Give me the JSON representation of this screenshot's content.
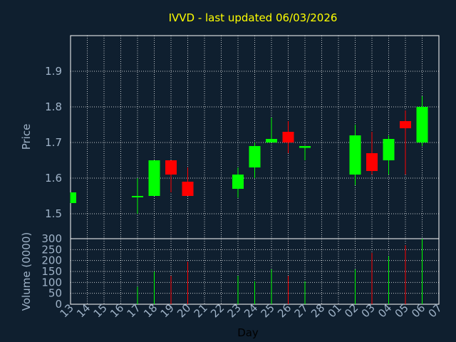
{
  "chart_data": {
    "type": "candlestick",
    "title": "IVVD - last updated 06/03/2026",
    "xlabel": "Day",
    "ylabel_price": "Price",
    "ylabel_volume": "Volume (0000)",
    "x_ticks": [
      "13",
      "14",
      "15",
      "16",
      "17",
      "18",
      "19",
      "20",
      "21",
      "22",
      "23",
      "24",
      "25",
      "26",
      "27",
      "28",
      "01",
      "02",
      "03",
      "04",
      "05",
      "06",
      "07"
    ],
    "price_yticks": [
      "1.5",
      "1.6",
      "1.7",
      "1.8",
      "1.9"
    ],
    "price_ylim": [
      1.43,
      2.0
    ],
    "volume_yticks": [
      "0",
      "50",
      "100",
      "150",
      "200",
      "250",
      "300"
    ],
    "volume_ylim": [
      0,
      300
    ],
    "grid": true,
    "colors": {
      "up": "#00ff00",
      "down": "#ff0000",
      "title": "#ffff00",
      "axis_text": "#9fb3c8",
      "background": "#0f1f2f"
    },
    "candles": [
      {
        "day": "13",
        "open": 1.53,
        "high": 1.56,
        "low": 1.53,
        "close": 1.56,
        "volume": 0
      },
      {
        "day": "17",
        "open": 1.55,
        "high": 1.6,
        "low": 1.5,
        "close": 1.55,
        "volume": 80
      },
      {
        "day": "18",
        "open": 1.55,
        "high": 1.65,
        "low": 1.55,
        "close": 1.65,
        "volume": 150
      },
      {
        "day": "19",
        "open": 1.65,
        "high": 1.65,
        "low": 1.56,
        "close": 1.61,
        "volume": 130
      },
      {
        "day": "20",
        "open": 1.59,
        "high": 1.63,
        "low": 1.55,
        "close": 1.55,
        "volume": 195
      },
      {
        "day": "23",
        "open": 1.57,
        "high": 1.63,
        "low": 1.545,
        "close": 1.61,
        "volume": 130
      },
      {
        "day": "24",
        "open": 1.63,
        "high": 1.7,
        "low": 1.6,
        "close": 1.69,
        "volume": 105
      },
      {
        "day": "25",
        "open": 1.7,
        "high": 1.77,
        "low": 1.7,
        "close": 1.71,
        "volume": 160
      },
      {
        "day": "26",
        "open": 1.73,
        "high": 1.76,
        "low": 1.67,
        "close": 1.7,
        "volume": 130
      },
      {
        "day": "27",
        "open": 1.685,
        "high": 1.69,
        "low": 1.65,
        "close": 1.69,
        "volume": 105
      },
      {
        "day": "02",
        "open": 1.61,
        "high": 1.75,
        "low": 1.58,
        "close": 1.72,
        "volume": 160
      },
      {
        "day": "03",
        "open": 1.67,
        "high": 1.73,
        "low": 1.61,
        "close": 1.62,
        "volume": 235
      },
      {
        "day": "04",
        "open": 1.65,
        "high": 1.72,
        "low": 1.61,
        "close": 1.71,
        "volume": 220
      },
      {
        "day": "05",
        "open": 1.76,
        "high": 1.79,
        "low": 1.61,
        "close": 1.74,
        "volume": 270
      },
      {
        "day": "06",
        "open": 1.7,
        "high": 1.83,
        "low": 1.69,
        "close": 1.8,
        "volume": 300
      }
    ]
  }
}
